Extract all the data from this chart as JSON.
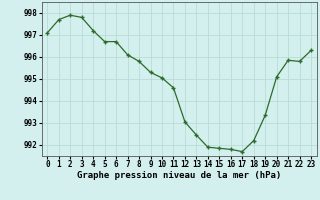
{
  "x": [
    0,
    1,
    2,
    3,
    4,
    5,
    6,
    7,
    8,
    9,
    10,
    11,
    12,
    13,
    14,
    15,
    16,
    17,
    18,
    19,
    20,
    21,
    22,
    23
  ],
  "y": [
    997.1,
    997.7,
    997.9,
    997.8,
    997.2,
    996.7,
    996.7,
    996.1,
    995.8,
    995.3,
    995.05,
    994.6,
    993.05,
    992.45,
    991.9,
    991.85,
    991.8,
    991.7,
    992.2,
    993.35,
    995.1,
    995.85,
    995.8,
    996.3
  ],
  "line_color": "#2d6a2d",
  "marker": "+",
  "marker_size": 3,
  "marker_linewidth": 1.0,
  "background_color": "#d4f0ee",
  "grid_color": "#b8dcd6",
  "ylabel_ticks": [
    992,
    993,
    994,
    995,
    996,
    997,
    998
  ],
  "xlabel": "Graphe pression niveau de la mer (hPa)",
  "xlim": [
    -0.5,
    23.5
  ],
  "ylim": [
    991.5,
    998.5
  ],
  "label_fontsize": 6.5,
  "tick_fontsize": 5.5
}
